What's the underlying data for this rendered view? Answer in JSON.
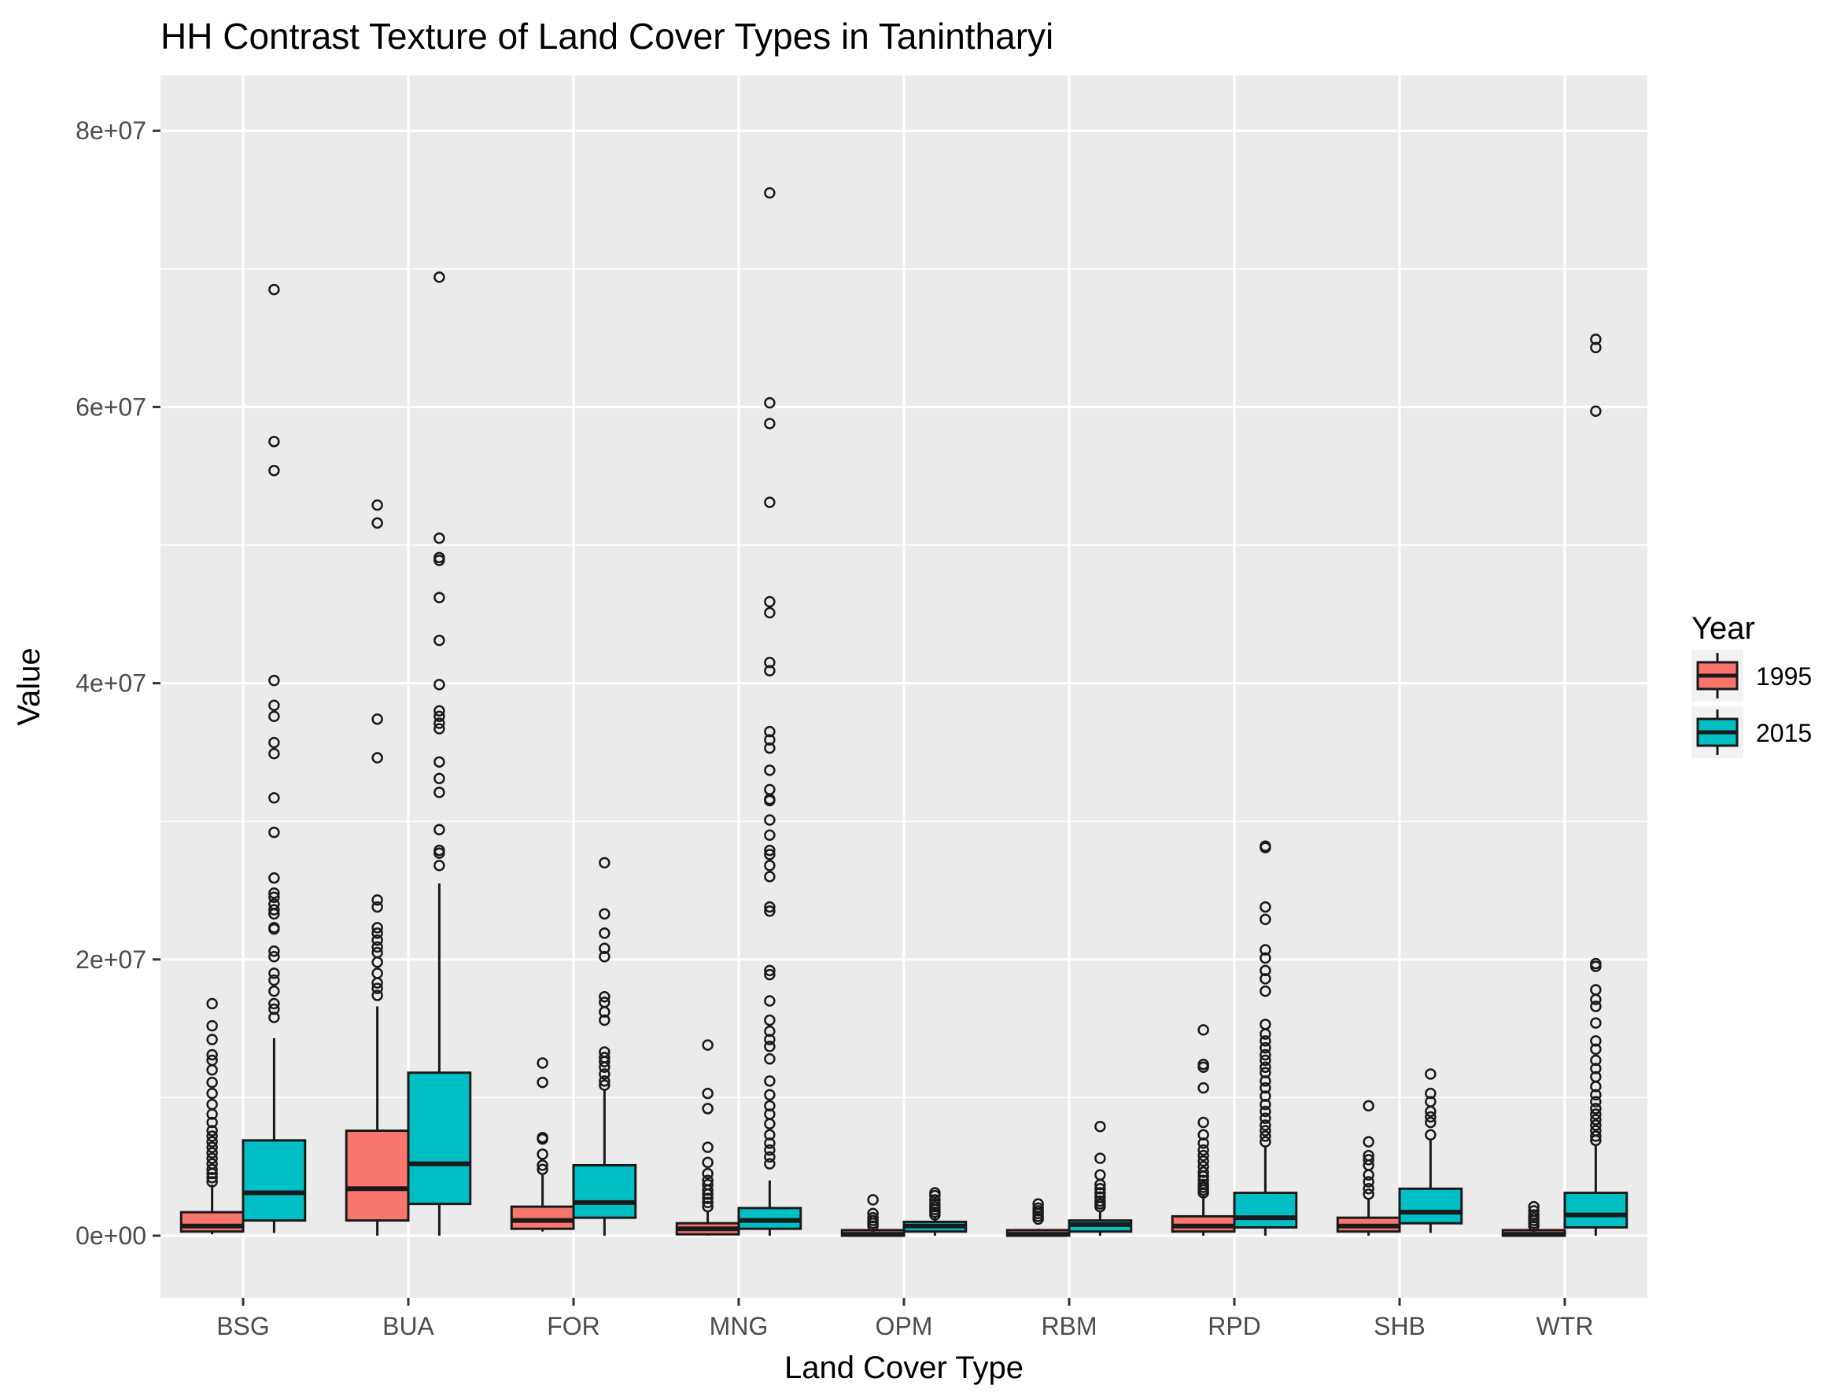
{
  "chart_data": {
    "type": "boxplot",
    "title": "HH Contrast Texture of Land Cover Types in Tanintharyi",
    "xlabel": "Land Cover Type",
    "ylabel": "Value",
    "ylim": [
      -4500000,
      84000000
    ],
    "y_ticks": [
      0,
      20000000,
      40000000,
      60000000,
      80000000
    ],
    "y_tick_labels": [
      "0e+00",
      "2e+07",
      "4e+07",
      "6e+07",
      "8e+07"
    ],
    "grid": true,
    "legend": {
      "title": "Year",
      "placement": "right"
    },
    "categories": [
      "BSG",
      "BUA",
      "FOR",
      "MNG",
      "OPM",
      "RBM",
      "RPD",
      "SHB",
      "WTR"
    ],
    "series": [
      {
        "name": "1995",
        "color": "#F8766D",
        "boxes": [
          {
            "min": 100000,
            "q1": 300000,
            "median": 700000,
            "q3": 1700000,
            "max": 3700000,
            "outliers": [
              3900000,
              4200000,
              4500000,
              4800000,
              5200000,
              5600000,
              6000000,
              6400000,
              6800000,
              7200000,
              7600000,
              8200000,
              8800000,
              9500000,
              10300000,
              11100000,
              12000000,
              12700000,
              13100000,
              14200000,
              15200000,
              16800000
            ]
          },
          {
            "min": 0,
            "q1": 1100000,
            "median": 3400000,
            "q3": 7600000,
            "max": 16600000,
            "outliers": [
              17400000,
              17900000,
              18300000,
              19000000,
              19800000,
              20500000,
              20900000,
              21400000,
              21900000,
              22300000,
              23800000,
              24300000,
              34600000,
              37400000,
              51600000,
              52900000
            ]
          },
          {
            "min": 300000,
            "q1": 500000,
            "median": 1100000,
            "q3": 2100000,
            "max": 4500000,
            "outliers": [
              4800000,
              5100000,
              5900000,
              7000000,
              7100000,
              11100000,
              12500000
            ]
          },
          {
            "min": 0,
            "q1": 100000,
            "median": 500000,
            "q3": 900000,
            "max": 1800000,
            "outliers": [
              2100000,
              2400000,
              2700000,
              3000000,
              3300000,
              3700000,
              4000000,
              4500000,
              5300000,
              6400000,
              9200000,
              10300000,
              13800000
            ]
          },
          {
            "min": 0,
            "q1": 0,
            "median": 100000,
            "q3": 400000,
            "max": 500000,
            "outliers": [
              700000,
              900000,
              1100000,
              1300000,
              1600000,
              2600000
            ]
          },
          {
            "min": 0,
            "q1": 0,
            "median": 100000,
            "q3": 400000,
            "max": 500000,
            "outliers": [
              1200000,
              1400000,
              1600000,
              1800000,
              2000000,
              2300000
            ]
          },
          {
            "min": 0,
            "q1": 300000,
            "median": 700000,
            "q3": 1400000,
            "max": 2900000,
            "outliers": [
              3100000,
              3300000,
              3500000,
              3700000,
              4000000,
              4300000,
              4600000,
              5000000,
              5400000,
              5800000,
              6200000,
              6700000,
              7300000,
              8200000,
              10700000,
              12200000,
              12400000,
              14900000
            ]
          },
          {
            "min": 0,
            "q1": 300000,
            "median": 700000,
            "q3": 1300000,
            "max": 2700000,
            "outliers": [
              3000000,
              3400000,
              3900000,
              4400000,
              5100000,
              5500000,
              5800000,
              6800000,
              9400000
            ]
          },
          {
            "min": 0,
            "q1": 0,
            "median": 100000,
            "q3": 400000,
            "max": 500000,
            "outliers": [
              700000,
              900000,
              1100000,
              1300000,
              1500000,
              1800000,
              2100000
            ]
          }
        ]
      },
      {
        "name": "2015",
        "color": "#00BFC4",
        "boxes": [
          {
            "min": 200000,
            "q1": 1100000,
            "median": 3100000,
            "q3": 6900000,
            "max": 14300000,
            "outliers": [
              15800000,
              16400000,
              16800000,
              17700000,
              18500000,
              19000000,
              20200000,
              20600000,
              22200000,
              22300000,
              23300000,
              23600000,
              24000000,
              24500000,
              24800000,
              25900000,
              29200000,
              31700000,
              34900000,
              35700000,
              37600000,
              38400000,
              40200000,
              55400000,
              57500000,
              68500000
            ]
          },
          {
            "min": 0,
            "q1": 2300000,
            "median": 5200000,
            "q3": 11800000,
            "max": 25500000,
            "outliers": [
              26800000,
              27700000,
              27900000,
              29400000,
              32100000,
              33100000,
              34300000,
              36700000,
              37100000,
              37600000,
              38000000,
              39900000,
              43100000,
              46200000,
              48900000,
              49100000,
              50500000,
              69400000
            ]
          },
          {
            "min": 0,
            "q1": 1300000,
            "median": 2400000,
            "q3": 5100000,
            "max": 10600000,
            "outliers": [
              10900000,
              11200000,
              11700000,
              12200000,
              12600000,
              12900000,
              13300000,
              15600000,
              16200000,
              16900000,
              17300000,
              20200000,
              20800000,
              21900000,
              23300000,
              27000000
            ]
          },
          {
            "min": 0,
            "q1": 500000,
            "median": 1100000,
            "q3": 2000000,
            "max": 4000000,
            "outliers": [
              5200000,
              5700000,
              6200000,
              6700000,
              7300000,
              8100000,
              8800000,
              9400000,
              10200000,
              11200000,
              12800000,
              13700000,
              14200000,
              14800000,
              15600000,
              17000000,
              18900000,
              19200000,
              23500000,
              23800000,
              26000000,
              26800000,
              27600000,
              27900000,
              29000000,
              30100000,
              31500000,
              31600000,
              32300000,
              33700000,
              35300000,
              35900000,
              36500000,
              40900000,
              41500000,
              45100000,
              45900000,
              53100000,
              58800000,
              60300000,
              75500000
            ]
          },
          {
            "min": 0,
            "q1": 300000,
            "median": 700000,
            "q3": 1000000,
            "max": 1300000,
            "outliers": [
              1500000,
              1700000,
              1900000,
              2100000,
              2300000,
              2600000,
              2900000,
              3100000
            ]
          },
          {
            "min": 0,
            "q1": 300000,
            "median": 800000,
            "q3": 1100000,
            "max": 1800000,
            "outliers": [
              2100000,
              2300000,
              2500000,
              2800000,
              3100000,
              3400000,
              3700000,
              4400000,
              5600000,
              7900000
            ]
          },
          {
            "min": 0,
            "q1": 600000,
            "median": 1300000,
            "q3": 3100000,
            "max": 6500000,
            "outliers": [
              6800000,
              7200000,
              7600000,
              8000000,
              8500000,
              9000000,
              9500000,
              10100000,
              10700000,
              11200000,
              11800000,
              12200000,
              12700000,
              13100000,
              13600000,
              14100000,
              14600000,
              15300000,
              17700000,
              18600000,
              19200000,
              20100000,
              20700000,
              22900000,
              23800000,
              28100000,
              28200000
            ]
          },
          {
            "min": 200000,
            "q1": 900000,
            "median": 1700000,
            "q3": 3400000,
            "max": 7000000,
            "outliers": [
              7300000,
              8200000,
              8600000,
              9000000,
              9700000,
              10300000,
              11700000
            ]
          },
          {
            "min": 0,
            "q1": 600000,
            "median": 1500000,
            "q3": 3100000,
            "max": 6500000,
            "outliers": [
              6900000,
              7200000,
              7600000,
              8000000,
              8400000,
              8800000,
              9200000,
              9700000,
              10200000,
              10800000,
              11500000,
              12100000,
              12700000,
              13500000,
              14100000,
              15400000,
              16600000,
              17100000,
              17800000,
              19500000,
              19700000,
              59700000,
              64300000,
              64900000
            ]
          }
        ]
      }
    ]
  }
}
